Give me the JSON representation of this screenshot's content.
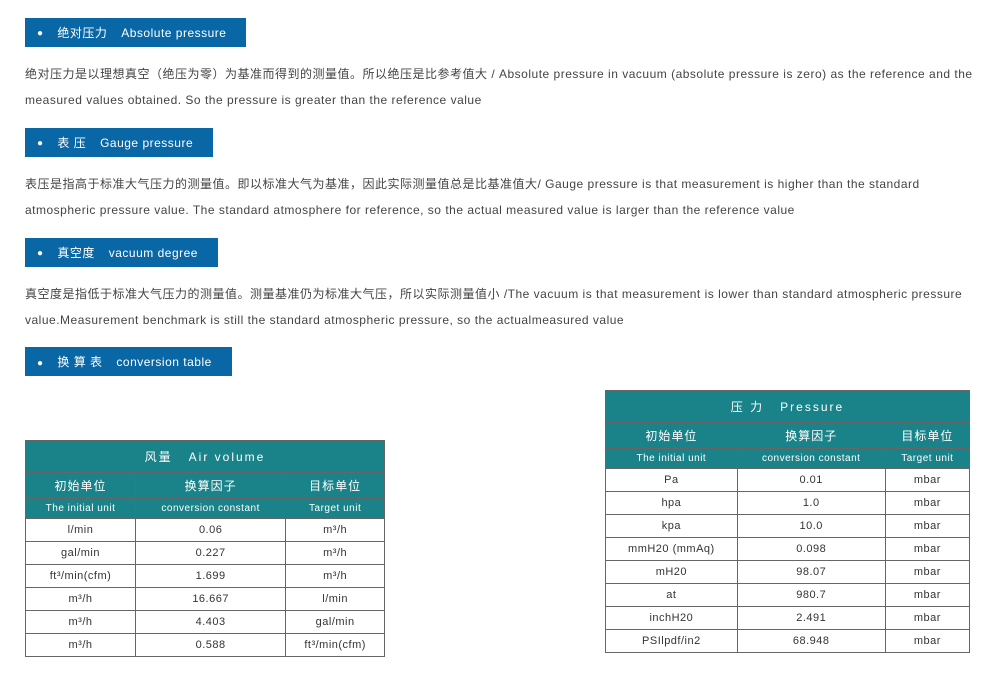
{
  "colors": {
    "tag_bg": "#0a67a6",
    "table_header_bg": "#198389",
    "border": "#666666",
    "text": "#333333",
    "white": "#ffffff"
  },
  "sections": [
    {
      "tag_cn": "绝对压力",
      "tag_en": "Absolute pressure",
      "desc": "绝对压力是以理想真空（绝压为零）为基准而得到的测量值。所以绝压是比参考值大  /  Absolute pressure in vacuum (absolute pressure is zero) as the reference and the measured values obtained. So the pressure is greater than the reference value"
    },
    {
      "tag_cn": "表  压",
      "tag_en": "Gauge pressure",
      "desc": "表压是指高于标准大气压力的测量值。即以标准大气为基准，因此实际测量值总是比基准值大/ Gauge pressure is that measurement is higher than the standard atmospheric pressure value. The standard atmosphere for reference, so the actual measured value is larger than the reference value"
    },
    {
      "tag_cn": "真空度",
      "tag_en": "vacuum degree",
      "desc": "真空度是指低于标准大气压力的测量值。测量基准仍为标准大气压，所以实际测量值小  /The vacuum is that measurement is lower than standard atmospheric pressure value.Measurement benchmark is still the standard atmospheric pressure, so the actualmeasured value"
    },
    {
      "tag_cn": "换  算  表",
      "tag_en": "conversion table",
      "desc": ""
    }
  ],
  "air_table": {
    "title_cn": "风量",
    "title_en": "Air volume",
    "col1_cn": "初始单位",
    "col1_en": "The initial unit",
    "col2_cn": "换算因子",
    "col2_en": "conversion  constant",
    "col3_cn": "目标单位",
    "col3_en": "Target unit",
    "rows": [
      {
        "u1": "l/min",
        "c": "0.06",
        "u2": "m³/h"
      },
      {
        "u1": "gal/min",
        "c": "0.227",
        "u2": "m³/h"
      },
      {
        "u1": "ft³/min(cfm)",
        "c": "1.699",
        "u2": "m³/h"
      },
      {
        "u1": "m³/h",
        "c": "16.667",
        "u2": "l/min"
      },
      {
        "u1": "m³/h",
        "c": "4.403",
        "u2": "gal/min"
      },
      {
        "u1": "m³/h",
        "c": "0.588",
        "u2": "ft³/min(cfm)"
      }
    ]
  },
  "pressure_table": {
    "title_cn": "压  力",
    "title_en": "Pressure",
    "col1_cn": "初始单位",
    "col1_en": "The initial unit",
    "col2_cn": "换算因子",
    "col2_en": "conversion  constant",
    "col3_cn": "目标单位",
    "col3_en": "Target unit",
    "rows": [
      {
        "u1": "Pa",
        "c": "0.01",
        "u2": "mbar"
      },
      {
        "u1": "hpa",
        "c": "1.0",
        "u2": "mbar"
      },
      {
        "u1": "kpa",
        "c": "10.0",
        "u2": "mbar"
      },
      {
        "u1": "mmH20 (mmAq)",
        "c": "0.098",
        "u2": "mbar"
      },
      {
        "u1": "mH20",
        "c": "98.07",
        "u2": "mbar"
      },
      {
        "u1": "at",
        "c": "980.7",
        "u2": "mbar"
      },
      {
        "u1": "inchH20",
        "c": "2.491",
        "u2": "mbar"
      },
      {
        "u1": "PSIlpdf/in2",
        "c": "68.948",
        "u2": "mbar"
      }
    ]
  }
}
